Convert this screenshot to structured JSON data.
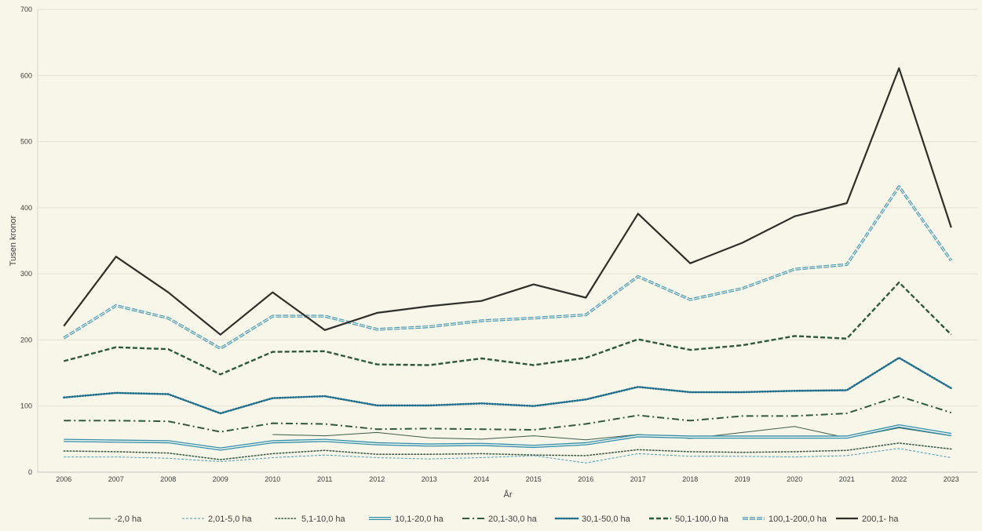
{
  "chart_data": {
    "type": "line",
    "xlabel": "År",
    "ylabel": "Tusen kronor",
    "ylim": [
      0,
      700
    ],
    "yticks": [
      "0",
      "100",
      "200",
      "300",
      "400",
      "500",
      "600",
      "700"
    ],
    "grid": true,
    "legend_position": "bottom",
    "categories": [
      "2006",
      "2007",
      "2008",
      "2009",
      "2010",
      "2011",
      "2012",
      "2013",
      "2014",
      "2015",
      "2016",
      "2017",
      "2018",
      "2019",
      "2020",
      "2021",
      "2022",
      "2023"
    ],
    "series": [
      {
        "name": "-2,0 ha",
        "color": "#3e5e4a",
        "style": "thin-solid",
        "values": [
          null,
          null,
          null,
          null,
          57,
          55,
          60,
          52,
          50,
          55,
          49,
          57,
          51,
          60,
          69,
          52,
          67,
          55
        ]
      },
      {
        "name": "2,01-5,0 ha",
        "color": "#4a9bb5",
        "style": "thin-dash",
        "values": [
          23,
          23,
          21,
          16,
          22,
          26,
          22,
          20,
          22,
          25,
          14,
          28,
          24,
          24,
          23,
          25,
          36,
          22
        ]
      },
      {
        "name": "5,1-10,0 ha",
        "color": "#3e5e4a",
        "style": "dot",
        "values": [
          32,
          31,
          29,
          19,
          28,
          33,
          27,
          27,
          28,
          26,
          25,
          34,
          31,
          30,
          31,
          33,
          44,
          35
        ]
      },
      {
        "name": "10,1-20,0 ha",
        "color": "#2f8fae",
        "style": "double-solid",
        "values": [
          48,
          47,
          46,
          35,
          46,
          48,
          43,
          41,
          42,
          39,
          43,
          55,
          53,
          53,
          53,
          53,
          70,
          57
        ]
      },
      {
        "name": "20,1-30,0 ha",
        "color": "#2e5a3a",
        "style": "dash-dot",
        "values": [
          78,
          78,
          77,
          61,
          74,
          73,
          65,
          66,
          65,
          64,
          73,
          86,
          78,
          85,
          85,
          89,
          115,
          90
        ]
      },
      {
        "name": "30,1-50,0 ha",
        "color": "#1e6e8c",
        "style": "bold-dot",
        "values": [
          113,
          120,
          118,
          89,
          112,
          115,
          101,
          101,
          104,
          100,
          110,
          129,
          121,
          121,
          123,
          124,
          173,
          127
        ]
      },
      {
        "name": "50,1-100,0 ha",
        "color": "#2e5a3a",
        "style": "bold-dash",
        "values": [
          168,
          189,
          186,
          148,
          182,
          183,
          163,
          162,
          172,
          162,
          173,
          201,
          185,
          192,
          206,
          202,
          287,
          208
        ]
      },
      {
        "name": "100,1-200,0 ha",
        "color": "#4a9bb5",
        "style": "double-dash",
        "values": [
          203,
          252,
          233,
          187,
          236,
          236,
          216,
          220,
          229,
          233,
          238,
          296,
          261,
          278,
          307,
          314,
          432,
          320
        ]
      },
      {
        "name": "200,1- ha",
        "color": "#2f2f2a",
        "style": "thick-solid",
        "values": [
          221,
          326,
          272,
          208,
          272,
          215,
          241,
          251,
          259,
          284,
          264,
          391,
          316,
          347,
          387,
          407,
          611,
          370
        ]
      }
    ]
  }
}
